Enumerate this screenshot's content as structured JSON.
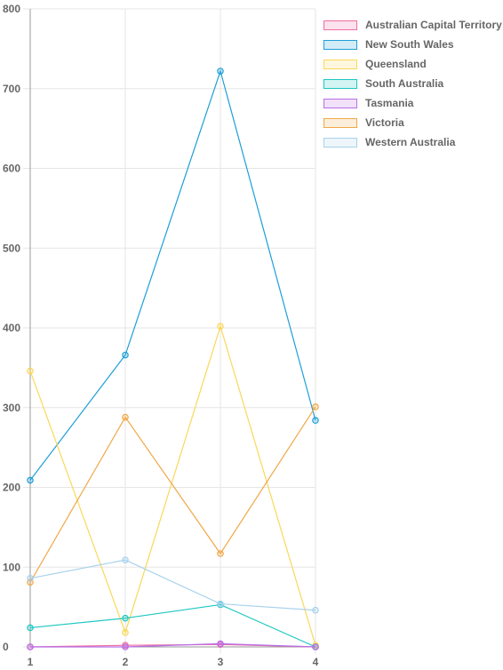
{
  "chart_data": {
    "type": "line",
    "x": [
      "1",
      "2",
      "3",
      "4"
    ],
    "ylim": [
      0,
      800
    ],
    "yticks": [
      0,
      100,
      200,
      300,
      400,
      500,
      600,
      700,
      800
    ],
    "grid": true,
    "legend_position": "right",
    "series": [
      {
        "name": "Australian Capital Territory",
        "values": [
          0,
          2,
          3,
          0
        ],
        "color": "#f06ea0"
      },
      {
        "name": "New South Wales",
        "values": [
          209,
          366,
          722,
          284
        ],
        "color": "#1e9fd8"
      },
      {
        "name": "Queensland",
        "values": [
          346,
          18,
          402,
          2
        ],
        "color": "#f9d85a"
      },
      {
        "name": "South Australia",
        "values": [
          24,
          36,
          53,
          0
        ],
        "color": "#1fc7c2"
      },
      {
        "name": "Tasmania",
        "values": [
          0,
          0,
          4,
          0
        ],
        "color": "#b86ee8"
      },
      {
        "name": "Victoria",
        "values": [
          81,
          288,
          117,
          301
        ],
        "color": "#f0a848"
      },
      {
        "name": "Western Australia",
        "values": [
          86,
          109,
          54,
          46
        ],
        "color": "#a8d2ec"
      }
    ]
  }
}
